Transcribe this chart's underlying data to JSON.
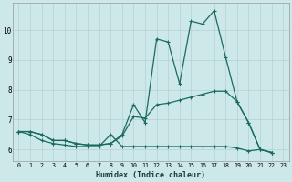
{
  "xlabel": "Humidex (Indice chaleur)",
  "background_color": "#cde8e8",
  "grid_color": "#b8d4d4",
  "line_color": "#1a6b5e",
  "xlim": [
    -0.5,
    23.5
  ],
  "ylim": [
    5.6,
    10.9
  ],
  "xticks": [
    0,
    1,
    2,
    3,
    4,
    5,
    6,
    7,
    8,
    9,
    10,
    11,
    12,
    13,
    14,
    15,
    16,
    17,
    18,
    19,
    20,
    21,
    22,
    23
  ],
  "yticks": [
    6,
    7,
    8,
    9,
    10
  ],
  "line1_x": [
    0,
    1,
    2,
    3,
    4,
    5,
    6,
    7,
    8,
    9,
    10,
    11,
    12,
    13,
    14,
    15,
    16,
    17,
    18,
    19,
    20,
    21,
    22
  ],
  "line1_y": [
    6.6,
    6.6,
    6.5,
    6.3,
    6.3,
    6.2,
    6.15,
    6.15,
    6.2,
    6.5,
    7.5,
    6.9,
    9.7,
    9.6,
    8.2,
    10.3,
    10.2,
    10.65,
    9.1,
    7.6,
    6.9,
    6.0,
    5.9
  ],
  "line2_x": [
    0,
    1,
    2,
    3,
    4,
    5,
    6,
    7,
    8,
    9,
    10,
    11,
    12,
    13,
    14,
    15,
    16,
    17,
    18,
    19,
    20,
    21,
    22
  ],
  "line2_y": [
    6.6,
    6.6,
    6.5,
    6.3,
    6.3,
    6.2,
    6.15,
    6.15,
    6.2,
    6.45,
    7.1,
    7.05,
    7.5,
    7.55,
    7.65,
    7.75,
    7.85,
    7.95,
    7.95,
    7.6,
    6.9,
    6.0,
    5.9
  ],
  "line3_x": [
    0,
    1,
    2,
    3,
    4,
    5,
    6,
    7,
    8,
    9,
    10,
    11,
    12,
    13,
    14,
    15,
    16,
    17,
    18,
    19,
    20,
    21,
    22
  ],
  "line3_y": [
    6.6,
    6.5,
    6.3,
    6.2,
    6.15,
    6.1,
    6.1,
    6.1,
    6.5,
    6.1,
    6.1,
    6.1,
    6.1,
    6.1,
    6.1,
    6.1,
    6.1,
    6.1,
    6.1,
    6.05,
    5.95,
    6.0,
    5.9
  ]
}
